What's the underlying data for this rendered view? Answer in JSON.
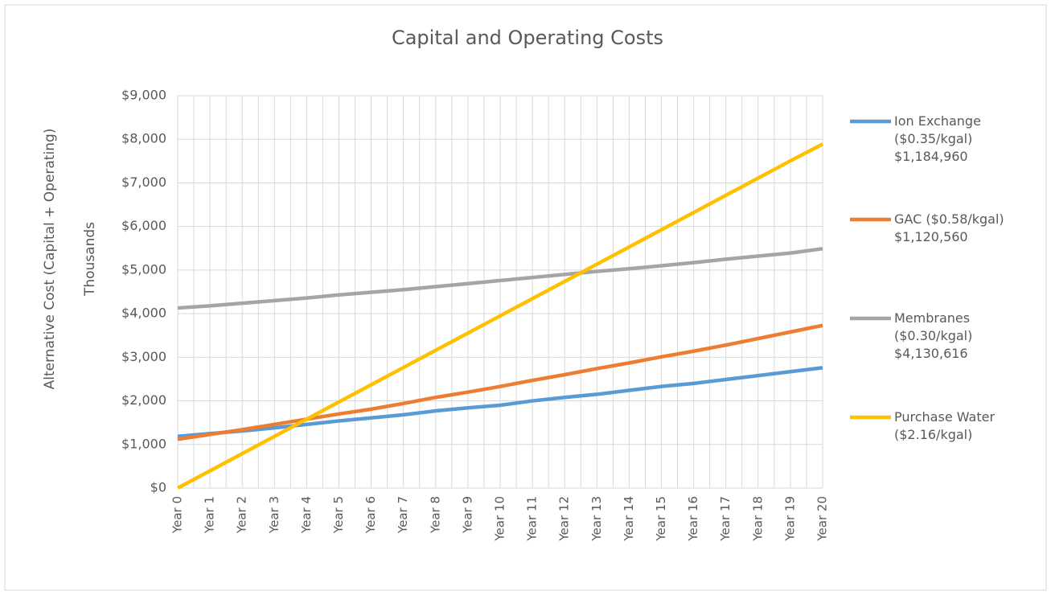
{
  "chart_data": {
    "type": "line",
    "title": "Capital and Operating Costs",
    "y_label": "Alternative Cost (Capital + Operating)",
    "y_unit": "Thousands",
    "categories": [
      "Year 0",
      "Year 1",
      "Year 2",
      "Year 3",
      "Year 4",
      "Year 5",
      "Year 6",
      "Year 7",
      "Year 8",
      "Year 9",
      "Year 10",
      "Year 11",
      "Year 12",
      "Year 13",
      "Year 14",
      "Year 15",
      "Year 16",
      "Year 17",
      "Year 18",
      "Year 19",
      "Year 20"
    ],
    "series": [
      {
        "name": "Ion Exchange ($0.35/kgal) $1,184,960",
        "color": "#5b9bd5",
        "values": [
          1185,
          1250,
          1310,
          1380,
          1460,
          1540,
          1610,
          1680,
          1770,
          1840,
          1900,
          2000,
          2080,
          2150,
          2240,
          2330,
          2400,
          2490,
          2580,
          2670,
          2760
        ]
      },
      {
        "name": "GAC ($0.58/kgal) $1,120,560",
        "color": "#ed7d31",
        "values": [
          1120,
          1230,
          1340,
          1460,
          1580,
          1700,
          1810,
          1940,
          2080,
          2200,
          2330,
          2470,
          2600,
          2740,
          2870,
          3010,
          3140,
          3280,
          3430,
          3580,
          3730
        ]
      },
      {
        "name": "Membranes ($0.30/kgal) $4,130,616",
        "color": "#a5a5a5",
        "values": [
          4130,
          4180,
          4240,
          4300,
          4360,
          4430,
          4490,
          4550,
          4620,
          4690,
          4760,
          4830,
          4900,
          4970,
          5030,
          5100,
          5170,
          5250,
          5320,
          5390,
          5490
        ]
      },
      {
        "name": "Purchase Water ($2.16/kgal)",
        "color": "#ffc000",
        "values": [
          0,
          395,
          790,
          1185,
          1580,
          1975,
          2370,
          2765,
          3160,
          3555,
          3950,
          4345,
          4740,
          5135,
          5530,
          5925,
          6320,
          6715,
          7110,
          7505,
          7890
        ]
      }
    ],
    "ylim": [
      0,
      9000
    ],
    "yticks": [
      {
        "value": 0,
        "label": "$0"
      },
      {
        "value": 1000,
        "label": "$1,000"
      },
      {
        "value": 2000,
        "label": "$2,000"
      },
      {
        "value": 3000,
        "label": "$3,000"
      },
      {
        "value": 4000,
        "label": "$4,000"
      },
      {
        "value": 5000,
        "label": "$5,000"
      },
      {
        "value": 6000,
        "label": "$6,000"
      },
      {
        "value": 7000,
        "label": "$7,000"
      },
      {
        "value": 8000,
        "label": "$8,000"
      },
      {
        "value": 9000,
        "label": "$9,000"
      }
    ],
    "grid": true,
    "legend": "right"
  }
}
